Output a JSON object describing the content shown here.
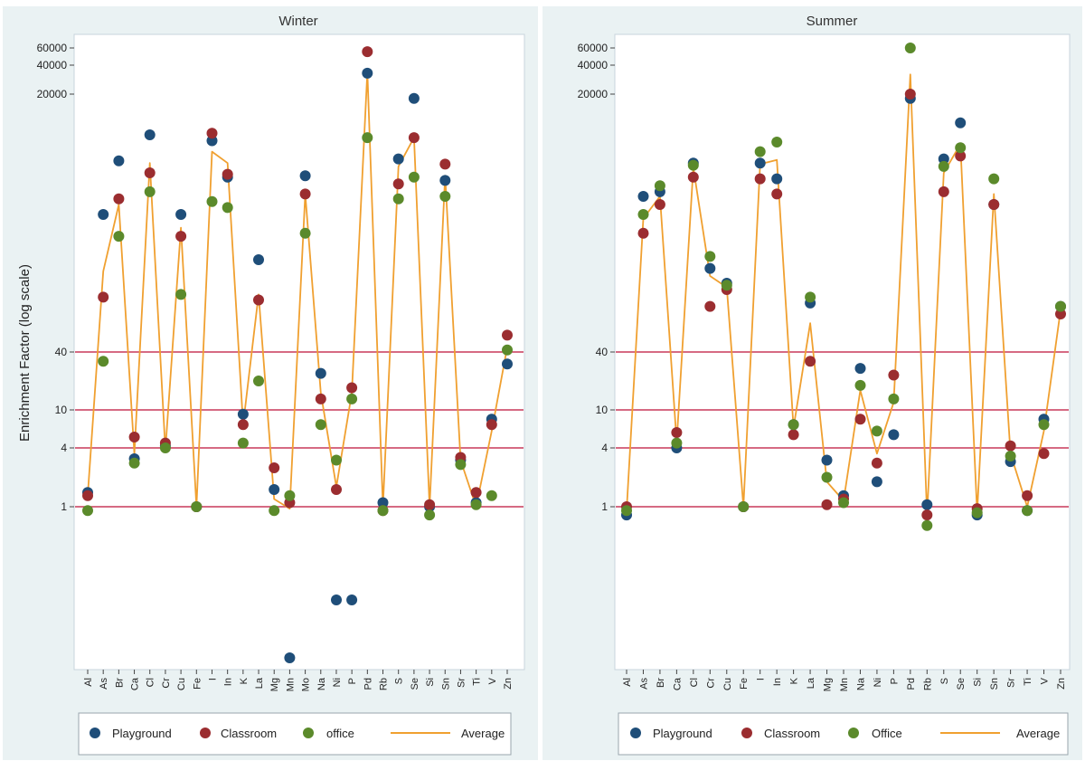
{
  "figure": {
    "ylabel": "Enrichment Factor (log scale)",
    "colors": {
      "Playground": "#1f4e79",
      "Classroom": "#9b2d30",
      "Office": "#5b8a2b",
      "Average": "#f0a030",
      "reference_line": "#c8385a",
      "plot_border": "#c8d4dc",
      "outer_background": "#eaf2f3"
    }
  },
  "chart_data": [
    {
      "type": "scatter",
      "title": "Winter",
      "ylabel": "Enrichment Factor (log scale)",
      "yscale": "log",
      "yticks": [
        1,
        4,
        10,
        40,
        20000,
        40000,
        60000
      ],
      "reference_lines": [
        1,
        4,
        10,
        40
      ],
      "grid": false,
      "legend_position": "bottom",
      "categories": [
        "Al",
        "As",
        "Br",
        "Ca",
        "Cl",
        "Cr",
        "Cu",
        "Fe",
        "I",
        "In",
        "K",
        "La",
        "Mg",
        "Mn",
        "Mo",
        "Na",
        "Ni",
        "P",
        "Pd",
        "Rb",
        "S",
        "Se",
        "Si",
        "Sn",
        "Sr",
        "Ti",
        "V",
        "Zn"
      ],
      "legend": [
        "Playground",
        "Classroom",
        "office",
        "Average"
      ],
      "series": [
        {
          "name": "Playground",
          "marker": "dot",
          "values": [
            1.4,
            1100,
            4000,
            3.1,
            7500,
            4.2,
            1100,
            1.0,
            6500,
            2700,
            9,
            370,
            1.5,
            0.015,
            2800,
            24,
            0.08,
            0.08,
            33000,
            1.1,
            4200,
            18000,
            1.0,
            2500,
            3.0,
            1.1,
            8,
            30
          ]
        },
        {
          "name": "Classroom",
          "marker": "dot",
          "values": [
            1.3,
            150,
            1600,
            5.2,
            3000,
            4.5,
            650,
            1.0,
            7800,
            2900,
            7,
            140,
            2.5,
            1.1,
            1800,
            13,
            1.5,
            17,
            55000,
            0.9,
            2300,
            7000,
            1.05,
            3700,
            3.2,
            1.4,
            7,
            60
          ]
        },
        {
          "name": "office",
          "marker": "dot",
          "values": [
            0.9,
            32,
            650,
            2.8,
            1900,
            4.0,
            160,
            1.0,
            1500,
            1300,
            4.5,
            20,
            0.9,
            1.3,
            700,
            7,
            3,
            13,
            7000,
            0.9,
            1600,
            2700,
            0.8,
            1700,
            2.7,
            1.05,
            1.3,
            42
          ]
        },
        {
          "name": "Average",
          "marker": "line",
          "values": [
            1.3,
            280,
            1400,
            3.5,
            3800,
            3.8,
            800,
            1.0,
            5000,
            3800,
            7,
            160,
            1.2,
            0.95,
            1800,
            15,
            1.6,
            15,
            34000,
            1.0,
            3500,
            7000,
            1.0,
            2800,
            3.0,
            1.0,
            6,
            45
          ]
        }
      ]
    },
    {
      "type": "scatter",
      "title": "Summer",
      "ylabel": "",
      "yscale": "log",
      "yticks": [
        1,
        4,
        10,
        40,
        20000,
        40000,
        60000
      ],
      "reference_lines": [
        1,
        4,
        10,
        40
      ],
      "grid": false,
      "legend_position": "bottom",
      "categories": [
        "Al",
        "As",
        "Br",
        "Ca",
        "Cl",
        "Cr",
        "Cu",
        "Fe",
        "I",
        "In",
        "K",
        "La",
        "Mg",
        "Mn",
        "Na",
        "Ni",
        "P",
        "Pd",
        "Rb",
        "S",
        "Se",
        "Si",
        "Sn",
        "Sr",
        "Ti",
        "V",
        "Zn"
      ],
      "legend": [
        "Playground",
        "Classroom",
        "Office",
        "Average"
      ],
      "series": [
        {
          "name": "Playground",
          "marker": "dot",
          "values": [
            0.8,
            1700,
            1900,
            4.0,
            3800,
            300,
            210,
            1.0,
            3800,
            2600,
            7,
            130,
            3.0,
            1.3,
            27,
            1.8,
            5.5,
            18000,
            1.05,
            4200,
            10000,
            0.8,
            1400,
            2.9,
            0.9,
            8,
            120
          ]
        },
        {
          "name": "Classroom",
          "marker": "dot",
          "values": [
            1.0,
            700,
            1400,
            5.8,
            2700,
            120,
            180,
            1.0,
            2600,
            1800,
            5.5,
            32,
            1.05,
            1.2,
            8,
            2.8,
            23,
            20000,
            0.8,
            1900,
            4500,
            0.95,
            1400,
            4.2,
            1.3,
            3.5,
            100
          ]
        },
        {
          "name": "Office",
          "marker": "dot",
          "values": [
            0.9,
            1100,
            2200,
            4.5,
            3600,
            400,
            200,
            1.0,
            5000,
            6300,
            7,
            150,
            2.0,
            1.1,
            18,
            6,
            13,
            60000,
            0.6,
            3500,
            5500,
            0.85,
            2600,
            3.3,
            0.9,
            7,
            120
          ]
        },
        {
          "name": "Average",
          "marker": "line",
          "values": [
            0.9,
            1000,
            1700,
            4.6,
            3400,
            250,
            190,
            1.0,
            3700,
            4100,
            6.5,
            80,
            1.8,
            1.15,
            16,
            3.5,
            12,
            32000,
            0.8,
            3000,
            6000,
            0.85,
            1800,
            3.5,
            1.0,
            6,
            110
          ]
        }
      ]
    }
  ]
}
